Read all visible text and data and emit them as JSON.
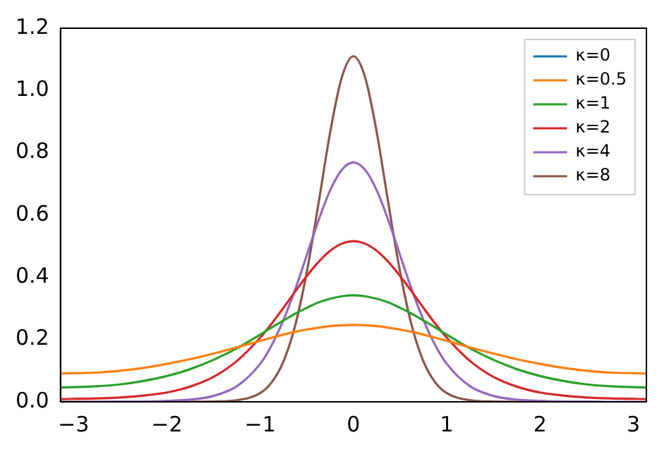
{
  "chart_data": {
    "type": "line",
    "x": [
      -3.14,
      -2.75,
      -2.5,
      -2.25,
      -2,
      -1.75,
      -1.5,
      -1.25,
      -1,
      -0.875,
      -0.75,
      -0.625,
      -0.5,
      -0.375,
      -0.25,
      -0.125,
      0,
      0.125,
      0.25,
      0.375,
      0.5,
      0.625,
      0.75,
      0.875,
      1,
      1.25,
      1.5,
      1.75,
      2,
      2.25,
      2.5,
      2.75,
      3.14
    ],
    "series": [
      {
        "name": "κ=0",
        "color": "#1f77b4",
        "values": [
          null,
          null,
          null,
          null,
          null,
          null,
          null,
          null,
          null,
          null,
          null,
          null,
          null,
          null,
          null,
          null,
          null,
          null,
          null,
          null,
          null,
          null,
          null,
          null,
          null,
          null,
          null,
          null,
          null,
          null,
          null,
          null,
          null
        ]
      },
      {
        "name": "κ=0.5",
        "color": "#ff7f0e",
        "values": [
          0.091,
          0.094,
          0.1,
          0.109,
          0.122,
          0.137,
          0.155,
          0.175,
          0.196,
          0.206,
          0.216,
          0.225,
          0.232,
          0.238,
          0.243,
          0.246,
          0.247,
          0.246,
          0.243,
          0.238,
          0.232,
          0.225,
          0.216,
          0.206,
          0.196,
          0.175,
          0.155,
          0.137,
          0.122,
          0.109,
          0.1,
          0.094,
          0.091
        ]
      },
      {
        "name": "κ=1",
        "color": "#2ca02c",
        "values": [
          0.046,
          0.05,
          0.056,
          0.067,
          0.083,
          0.105,
          0.135,
          0.172,
          0.216,
          0.239,
          0.261,
          0.283,
          0.302,
          0.319,
          0.331,
          0.339,
          0.342,
          0.339,
          0.331,
          0.319,
          0.302,
          0.283,
          0.261,
          0.239,
          0.216,
          0.172,
          0.135,
          0.105,
          0.083,
          0.067,
          0.056,
          0.05,
          0.046
        ]
      },
      {
        "name": "κ=2",
        "color": "#d62728",
        "values": [
          0.009,
          0.011,
          0.014,
          0.02,
          0.03,
          0.049,
          0.08,
          0.131,
          0.206,
          0.252,
          0.302,
          0.354,
          0.404,
          0.449,
          0.485,
          0.508,
          0.516,
          0.508,
          0.485,
          0.449,
          0.404,
          0.354,
          0.302,
          0.252,
          0.206,
          0.131,
          0.08,
          0.049,
          0.03,
          0.02,
          0.014,
          0.011,
          0.009
        ]
      },
      {
        "name": "κ=4",
        "color": "#9467bd",
        "values": [
          0.0,
          0.0,
          0.001,
          0.001,
          0.003,
          0.007,
          0.019,
          0.05,
          0.122,
          0.183,
          0.263,
          0.361,
          0.471,
          0.582,
          0.679,
          0.745,
          0.769,
          0.745,
          0.679,
          0.582,
          0.471,
          0.361,
          0.263,
          0.183,
          0.122,
          0.05,
          0.019,
          0.007,
          0.003,
          0.001,
          0.001,
          0.0,
          0.0
        ]
      },
      {
        "name": "κ=8",
        "color": "#8c564b",
        "values": [
          0.0,
          0.0,
          0.0,
          0.0,
          0.0,
          0.0,
          0.001,
          0.005,
          0.028,
          0.063,
          0.13,
          0.245,
          0.417,
          0.636,
          0.865,
          1.042,
          1.11,
          1.042,
          0.865,
          0.636,
          0.417,
          0.245,
          0.13,
          0.063,
          0.028,
          0.005,
          0.001,
          0.0,
          0.0,
          null,
          null,
          null,
          null
        ]
      }
    ],
    "xlim": [
      -3.14,
      3.14
    ],
    "xticks": [
      {
        "value": -3,
        "label": "−3"
      },
      {
        "value": -2,
        "label": "−2"
      },
      {
        "value": -1,
        "label": "−1"
      },
      0,
      1,
      2,
      3
    ],
    "ylim": [
      0,
      1.2
    ],
    "yticks": [
      {
        "value": 0,
        "label": "0.0"
      },
      {
        "value": 0.2,
        "label": "0.2"
      },
      {
        "value": 0.4,
        "label": "0.4"
      },
      {
        "value": 0.6,
        "label": "0.6"
      },
      {
        "value": 0.8,
        "label": "0.8"
      },
      {
        "value": 1,
        "label": "1.0"
      },
      {
        "value": 1.2,
        "label": "1.2"
      }
    ],
    "grid": false,
    "legend": "top right",
    "marker": "none",
    "line_style": "solid"
  }
}
